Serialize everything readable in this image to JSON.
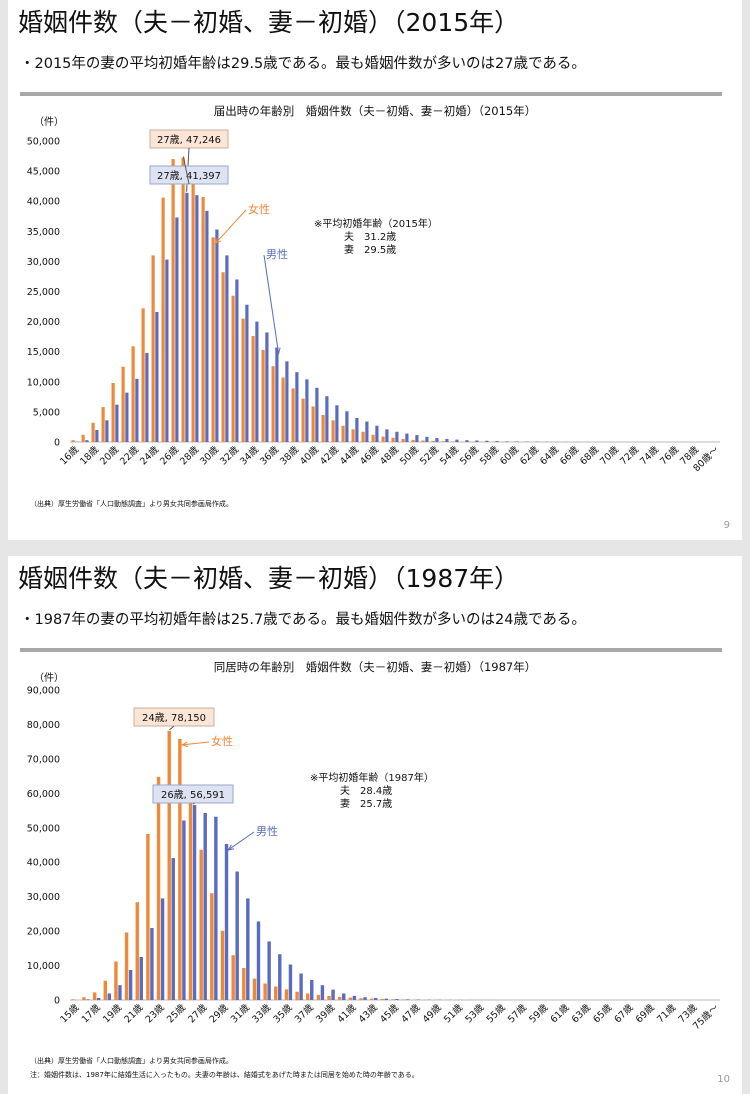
{
  "slides": [
    {
      "title": "婚姻件数（夫－初婚、妻－初婚）（2015年）",
      "bullet": "・2015年の妻の平均初婚年齢は29.5歳である。最も婚姻件数が多いのは27歳である。",
      "unit": "（件）",
      "source": "（出典）厚生労働省「人口動態調査」より男女共同参画局作成。",
      "page": "9",
      "avg_note": {
        "heading": "※平均初婚年齢（2015年）",
        "husband": "夫　31.2歳",
        "wife": "妻　29.5歳"
      },
      "callouts": {
        "female_peak": "27歳, 47,246",
        "male_peak": "27歳, 41,397",
        "female_label": "女性",
        "male_label": "男性"
      }
    },
    {
      "title": "婚姻件数（夫－初婚、妻－初婚）（1987年）",
      "bullet": "・1987年の妻の平均初婚年齢は25.7歳である。最も婚姻件数が多いのは24歳である。",
      "unit": "（件）",
      "source": "（出典）厚生労働省「人口動態調査」より男女共同参画局作成。",
      "note": "注：婚姻件数は、1987年に結婚生活に入ったもの。夫妻の年齢は、結婚式をあげた時または同居を始めた時の年齢である。",
      "page": "10",
      "avg_note": {
        "heading": "※平均初婚年齢（1987年）",
        "husband": "夫　28.4歳",
        "wife": "妻　25.7歳"
      },
      "callouts": {
        "female_peak": "24歳, 78,150",
        "male_peak": "26歳, 56,591",
        "female_label": "女性",
        "male_label": "男性"
      }
    }
  ],
  "colors": {
    "male": "#5b6bbf",
    "female": "#f0883a",
    "callout_f_bg": "#fbe5d6",
    "callout_m_bg": "#dde3f3",
    "gray": "#a8a8a8"
  },
  "chart_data": [
    {
      "type": "bar",
      "title": "届出時の年齢別　婚姻件数（夫－初婚、妻－初婚）（2015年）",
      "ylabel": "（件）",
      "ylim": [
        0,
        50000
      ],
      "yticks": [
        "0",
        "5,000",
        "10,000",
        "15,000",
        "20,000",
        "25,000",
        "30,000",
        "35,000",
        "40,000",
        "45,000",
        "50,000"
      ],
      "categories": [
        "16歳",
        "17歳",
        "18歳",
        "19歳",
        "20歳",
        "21歳",
        "22歳",
        "23歳",
        "24歳",
        "25歳",
        "26歳",
        "27歳",
        "28歳",
        "29歳",
        "30歳",
        "31歳",
        "32歳",
        "33歳",
        "34歳",
        "35歳",
        "36歳",
        "37歳",
        "38歳",
        "39歳",
        "40歳",
        "41歳",
        "42歳",
        "43歳",
        "44歳",
        "45歳",
        "46歳",
        "47歳",
        "48歳",
        "49歳",
        "50歳",
        "51歳",
        "52歳",
        "53歳",
        "54歳",
        "55歳",
        "56歳",
        "57歳",
        "58歳",
        "59歳",
        "60歳",
        "61歳",
        "62歳",
        "63歳",
        "64歳",
        "65歳",
        "66歳",
        "67歳",
        "68歳",
        "69歳",
        "70歳",
        "71歳",
        "72歳",
        "73歳",
        "74歳",
        "75歳",
        "76歳",
        "77歳",
        "78歳",
        "79歳",
        "80歳～"
      ],
      "xticklabels": [
        "16歳",
        "18歳",
        "20歳",
        "22歳",
        "24歳",
        "26歳",
        "28歳",
        "30歳",
        "32歳",
        "34歳",
        "36歳",
        "38歳",
        "40歳",
        "42歳",
        "44歳",
        "46歳",
        "48歳",
        "50歳",
        "52歳",
        "54歳",
        "56歳",
        "58歳",
        "60歳",
        "62歳",
        "64歳",
        "66歳",
        "68歳",
        "70歳",
        "72歳",
        "74歳",
        "76歳",
        "78歳",
        "80歳～"
      ],
      "series": [
        {
          "name": "男性",
          "values": [
            50,
            300,
            2000,
            3600,
            6200,
            8200,
            10500,
            14800,
            21600,
            30300,
            37300,
            41397,
            41000,
            38400,
            35300,
            31000,
            27000,
            22800,
            20000,
            18200,
            15700,
            13400,
            11600,
            10400,
            9000,
            7600,
            6100,
            5100,
            4000,
            3400,
            2700,
            2100,
            1700,
            1400,
            1150,
            850,
            650,
            500,
            400,
            300,
            250,
            200,
            150,
            110,
            90,
            70,
            55,
            40,
            30,
            20,
            15,
            12,
            10,
            8,
            6,
            5,
            4,
            3,
            3,
            2,
            2,
            2,
            1,
            1,
            5
          ]
        },
        {
          "name": "女性",
          "values": [
            300,
            1200,
            3200,
            5800,
            9800,
            12500,
            15900,
            22200,
            31000,
            40600,
            47000,
            47246,
            43800,
            40700,
            34000,
            28200,
            24300,
            20500,
            17600,
            15300,
            12600,
            10700,
            8900,
            7200,
            5900,
            4500,
            3600,
            2700,
            2100,
            1700,
            1200,
            900,
            700,
            500,
            350,
            250,
            180,
            130,
            90,
            60,
            45,
            35,
            25,
            18,
            14,
            10,
            8,
            6,
            4,
            3,
            2,
            2,
            1,
            1,
            1,
            1,
            1,
            1,
            0,
            0,
            0,
            0,
            0,
            0,
            2
          ]
        }
      ]
    },
    {
      "type": "bar",
      "title": "同居時の年齢別　婚姻件数（夫－初婚、妻－初婚）（1987年）",
      "ylabel": "（件）",
      "ylim": [
        0,
        90000
      ],
      "yticks": [
        "0",
        "10,000",
        "20,000",
        "30,000",
        "40,000",
        "50,000",
        "60,000",
        "70,000",
        "80,000",
        "90,000"
      ],
      "categories": [
        "15歳",
        "16歳",
        "17歳",
        "18歳",
        "19歳",
        "20歳",
        "21歳",
        "22歳",
        "23歳",
        "24歳",
        "25歳",
        "26歳",
        "27歳",
        "28歳",
        "29歳",
        "30歳",
        "31歳",
        "32歳",
        "33歳",
        "34歳",
        "35歳",
        "36歳",
        "37歳",
        "38歳",
        "39歳",
        "40歳",
        "41歳",
        "42歳",
        "43歳",
        "44歳",
        "45歳",
        "46歳",
        "47歳",
        "48歳",
        "49歳",
        "50歳",
        "51歳",
        "52歳",
        "53歳",
        "54歳",
        "55歳",
        "56歳",
        "57歳",
        "58歳",
        "59歳",
        "60歳",
        "61歳",
        "62歳",
        "63歳",
        "64歳",
        "65歳",
        "66歳",
        "67歳",
        "68歳",
        "69歳",
        "70歳",
        "71歳",
        "72歳",
        "73歳",
        "74歳",
        "75歳～"
      ],
      "xticklabels": [
        "15歳",
        "17歳",
        "19歳",
        "21歳",
        "23歳",
        "25歳",
        "27歳",
        "29歳",
        "31歳",
        "33歳",
        "35歳",
        "37歳",
        "39歳",
        "41歳",
        "43歳",
        "45歳",
        "47歳",
        "49歳",
        "51歳",
        "53歳",
        "55歳",
        "57歳",
        "59歳",
        "61歳",
        "63歳",
        "65歳",
        "67歳",
        "69歳",
        "71歳",
        "73歳",
        "75歳～"
      ],
      "series": [
        {
          "name": "男性",
          "values": [
            0,
            200,
            600,
            1900,
            4300,
            8700,
            12500,
            20900,
            29500,
            41200,
            52100,
            56591,
            54300,
            53200,
            45300,
            37300,
            29500,
            22800,
            17000,
            13300,
            10300,
            7700,
            5800,
            4300,
            3000,
            1900,
            1200,
            800,
            600,
            400,
            300,
            200,
            150,
            100,
            80,
            60,
            40,
            30,
            20,
            15,
            10,
            8,
            6,
            5,
            4,
            3,
            2,
            2,
            1,
            1,
            1,
            1,
            1,
            0,
            0,
            0,
            0,
            0,
            0,
            0,
            2
          ]
        },
        {
          "name": "女性",
          "values": [
            200,
            800,
            2200,
            5600,
            11200,
            19600,
            28400,
            48200,
            64800,
            78150,
            75800,
            59300,
            43600,
            31000,
            20100,
            13000,
            9300,
            6200,
            4800,
            3900,
            3100,
            2400,
            1900,
            1500,
            1200,
            900,
            700,
            500,
            400,
            300,
            220,
            170,
            120,
            90,
            70,
            50,
            40,
            30,
            20,
            15,
            10,
            8,
            6,
            5,
            4,
            3,
            2,
            2,
            1,
            1,
            1,
            1,
            0,
            0,
            0,
            0,
            0,
            0,
            0,
            0,
            1
          ]
        }
      ]
    }
  ]
}
